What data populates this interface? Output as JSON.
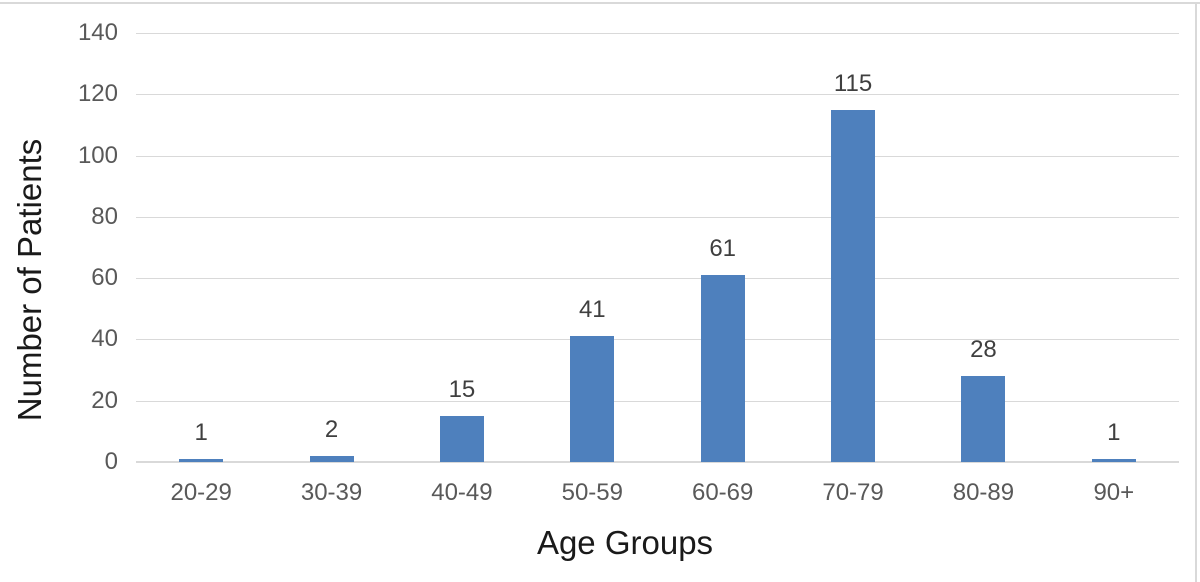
{
  "chart_data": {
    "type": "bar",
    "title": "",
    "xlabel": "Age Groups",
    "ylabel": "Number of Patients",
    "categories": [
      "20-29",
      "30-39",
      "40-49",
      "50-59",
      "60-69",
      "70-79",
      "80-89",
      "90+"
    ],
    "values": [
      1,
      2,
      15,
      41,
      61,
      115,
      28,
      1
    ],
    "data_labels_shown": true,
    "ylim": [
      0,
      140
    ],
    "yticks": [
      0,
      20,
      40,
      60,
      80,
      100,
      120,
      140
    ],
    "grid": "horizontal",
    "legend": "none",
    "colors": {
      "bar": "#4e80bd",
      "gridline": "#d9d9d9",
      "axis_line": "#d9d9d9",
      "tick_label": "#595959",
      "data_label": "#3f3f3f",
      "axis_title": "#1a1a1a",
      "chart_border": "#d9d9d9",
      "background": "#ffffff"
    }
  }
}
